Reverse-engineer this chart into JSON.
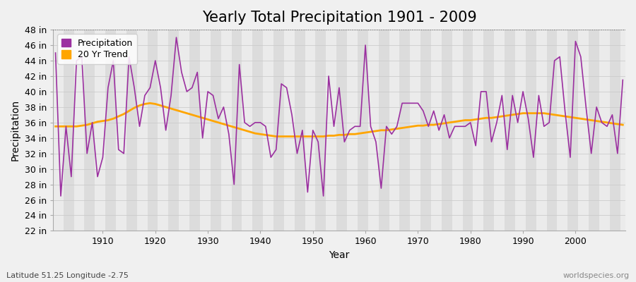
{
  "title": "Yearly Total Precipitation 1901 - 2009",
  "xlabel": "Year",
  "ylabel": "Precipitation",
  "subtitle": "Latitude 51.25 Longitude -2.75",
  "watermark": "worldspecies.org",
  "years": [
    1901,
    1902,
    1903,
    1904,
    1905,
    1906,
    1907,
    1908,
    1909,
    1910,
    1911,
    1912,
    1913,
    1914,
    1915,
    1916,
    1917,
    1918,
    1919,
    1920,
    1921,
    1922,
    1923,
    1924,
    1925,
    1926,
    1927,
    1928,
    1929,
    1930,
    1931,
    1932,
    1933,
    1934,
    1935,
    1936,
    1937,
    1938,
    1939,
    1940,
    1941,
    1942,
    1943,
    1944,
    1945,
    1946,
    1947,
    1948,
    1949,
    1950,
    1951,
    1952,
    1953,
    1954,
    1955,
    1956,
    1957,
    1958,
    1959,
    1960,
    1961,
    1962,
    1963,
    1964,
    1965,
    1966,
    1967,
    1968,
    1969,
    1970,
    1971,
    1972,
    1973,
    1974,
    1975,
    1976,
    1977,
    1978,
    1979,
    1980,
    1981,
    1982,
    1983,
    1984,
    1985,
    1986,
    1987,
    1988,
    1989,
    1990,
    1991,
    1992,
    1993,
    1994,
    1995,
    1996,
    1997,
    1998,
    1999,
    2000,
    2001,
    2002,
    2003,
    2004,
    2005,
    2006,
    2007,
    2008,
    2009
  ],
  "precip_in": [
    45.0,
    26.5,
    35.5,
    29.0,
    44.0,
    44.5,
    32.0,
    36.0,
    29.0,
    31.5,
    40.5,
    44.0,
    32.5,
    32.0,
    44.5,
    40.5,
    35.5,
    39.5,
    40.5,
    44.0,
    40.5,
    35.0,
    39.5,
    47.0,
    42.5,
    40.0,
    40.5,
    42.5,
    34.0,
    40.0,
    39.5,
    36.5,
    38.0,
    34.5,
    28.0,
    43.5,
    36.0,
    35.5,
    36.0,
    36.0,
    35.5,
    31.5,
    32.5,
    41.0,
    40.5,
    37.0,
    32.0,
    35.0,
    27.0,
    35.0,
    33.5,
    26.5,
    42.0,
    35.5,
    40.5,
    33.5,
    35.0,
    35.5,
    35.5,
    46.0,
    35.5,
    33.5,
    27.5,
    35.5,
    34.5,
    35.5,
    38.5,
    38.5,
    38.5,
    38.5,
    37.5,
    35.5,
    37.5,
    35.0,
    37.0,
    34.0,
    35.5,
    35.5,
    35.5,
    36.0,
    33.0,
    40.0,
    40.0,
    33.5,
    36.0,
    39.5,
    32.5,
    39.5,
    36.0,
    40.0,
    36.5,
    31.5,
    39.5,
    35.5,
    36.0,
    44.0,
    44.5,
    37.5,
    31.5,
    46.5,
    44.5,
    38.0,
    32.0,
    38.0,
    36.0,
    35.5,
    37.0,
    32.0,
    41.5
  ],
  "trend": [
    35.5,
    35.5,
    35.5,
    35.5,
    35.5,
    35.6,
    35.7,
    35.9,
    36.1,
    36.2,
    36.3,
    36.5,
    36.8,
    37.1,
    37.5,
    37.9,
    38.2,
    38.4,
    38.5,
    38.4,
    38.2,
    38.0,
    37.8,
    37.6,
    37.4,
    37.2,
    37.0,
    36.8,
    36.6,
    36.4,
    36.2,
    36.0,
    35.8,
    35.6,
    35.4,
    35.2,
    35.0,
    34.8,
    34.6,
    34.5,
    34.4,
    34.3,
    34.2,
    34.2,
    34.2,
    34.2,
    34.2,
    34.2,
    34.2,
    34.2,
    34.2,
    34.2,
    34.3,
    34.3,
    34.4,
    34.4,
    34.5,
    34.5,
    34.6,
    34.7,
    34.8,
    34.9,
    35.0,
    35.0,
    35.1,
    35.2,
    35.3,
    35.4,
    35.5,
    35.6,
    35.6,
    35.7,
    35.7,
    35.8,
    35.9,
    36.0,
    36.1,
    36.2,
    36.3,
    36.3,
    36.4,
    36.5,
    36.6,
    36.6,
    36.7,
    36.8,
    36.9,
    37.0,
    37.1,
    37.2,
    37.2,
    37.2,
    37.2,
    37.2,
    37.1,
    37.0,
    36.9,
    36.8,
    36.7,
    36.6,
    36.5,
    36.4,
    36.3,
    36.2,
    36.1,
    36.0,
    35.9,
    35.8,
    35.7
  ],
  "precip_color": "#9b30a0",
  "trend_color": "#FFA500",
  "bg_color": "#f0f0f0",
  "plot_bg_color": "#f0f0f0",
  "band_color_light": "#ebebeb",
  "band_color_dark": "#dcdcdc",
  "grid_color": "#cccccc",
  "ylim_min": 22,
  "ylim_max": 48,
  "ytick_step": 2,
  "xlim_min": 1901,
  "xlim_max": 2009,
  "title_fontsize": 15,
  "axis_fontsize": 10,
  "legend_fontsize": 9,
  "tick_fontsize": 9
}
